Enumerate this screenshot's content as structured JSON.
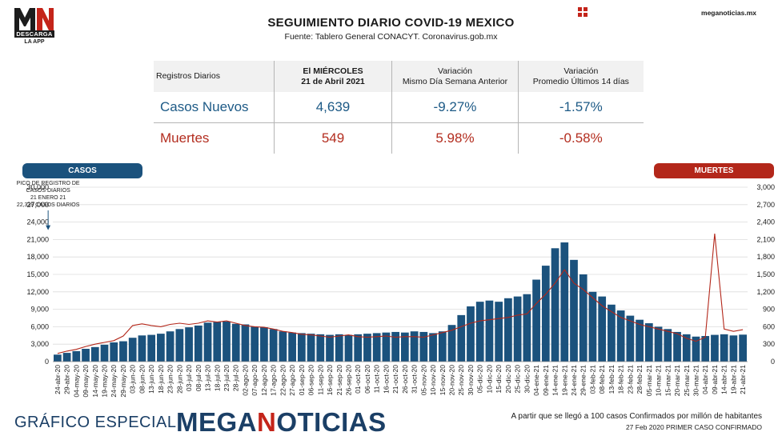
{
  "header": {
    "logo_letters": "MN",
    "logo_bar": "DESCARGA",
    "logo_sub": "LA APP",
    "title": "SEGUIMIENTO DIARIO COVID-19 MEXICO",
    "subtitle": "Fuente: Tablero General CONACYT. Coronavirus.gob.mx",
    "site": "meganoticias.mx"
  },
  "table": {
    "headers": {
      "label": "Registros Diarios",
      "date_line1": "El MIÉRCOLES",
      "date_line2": "21 de Abril 2021",
      "var1_line1": "Variación",
      "var1_line2": "Mismo Día Semana Anterior",
      "var2_line1": "Variación",
      "var2_line2": "Promedio Últimos 14 días"
    },
    "rows": [
      {
        "label": "Casos Nuevos",
        "value": "4,639",
        "var_week": "-9.27%",
        "var_14d": "-1.57%"
      },
      {
        "label": "Muertes",
        "value": "549",
        "var_week": "5.98%",
        "var_14d": "-0.58%"
      }
    ]
  },
  "legend": {
    "casos": "CASOS",
    "muertes": "MUERTES"
  },
  "annotation": [
    "PICO DE REGISTRO DE",
    "CASOS DIARIOS",
    "21 ENERO 21",
    "22,339 CASOS DIARIOS"
  ],
  "footer": {
    "left": "GRÁFICO ESPECIAL",
    "brand_a": "MEGA",
    "brand_b": "N",
    "brand_c": "OTICIAS",
    "note1": "A partir que se llegó a 100 casos Confirmados por millón de habitantes",
    "note2": "27 Feb 2020 PRIMER CASO CONFIRMADO"
  },
  "colors": {
    "casos": "#1b527d",
    "muertes": "#b3271a",
    "brand": "#1b3f66",
    "accent": "#c4241a"
  },
  "chart_data": {
    "type": "bar",
    "x_labels": [
      "24-abr-20",
      "29-abr-20",
      "04-may-20",
      "09-may-20",
      "14-may-20",
      "19-may-20",
      "24-may-20",
      "29-may-20",
      "03-jun-20",
      "08-jun-20",
      "13-jun-20",
      "18-jun-20",
      "23-jun-20",
      "28-jun-20",
      "03-jul-20",
      "08-jul-20",
      "13-jul-20",
      "18-jul-20",
      "23-jul-20",
      "28-jul-20",
      "02-ago-20",
      "07-ago-20",
      "12-ago-20",
      "17-ago-20",
      "22-ago-20",
      "27-ago-20",
      "01-sep-20",
      "06-sep-20",
      "11-sep-20",
      "16-sep-20",
      "21-sep-20",
      "26-sep-20",
      "01-oct-20",
      "06-oct-20",
      "11-oct-20",
      "16-oct-20",
      "21-oct-20",
      "26-oct-20",
      "31-oct-20",
      "05-nov-20",
      "10-nov-20",
      "15-nov-20",
      "20-nov-20",
      "25-nov-20",
      "30-nov-20",
      "05-dic-20",
      "10-dic-20",
      "15-dic-20",
      "20-dic-20",
      "25-dic-20",
      "30-dic-20",
      "04-ene-21",
      "09-ene-21",
      "14-ene-21",
      "19-ene-21",
      "24-ene-21",
      "29-ene-21",
      "03-feb-21",
      "08-feb-21",
      "13-feb-21",
      "18-feb-21",
      "23-feb-21",
      "28-feb-21",
      "05-mar-21",
      "10-mar-21",
      "15-mar-21",
      "20-mar-21",
      "25-mar-21",
      "30-mar-21",
      "04-abr-21",
      "09-abr-21",
      "14-abr-21",
      "19-abr-21",
      "21-abr-21"
    ],
    "series": [
      {
        "name": "CASOS",
        "axis": "left",
        "type": "bar",
        "values": [
          1200,
          1500,
          1800,
          2200,
          2500,
          2900,
          3300,
          3500,
          4100,
          4500,
          4600,
          4800,
          5200,
          5600,
          5900,
          6200,
          6700,
          6800,
          6900,
          6500,
          6400,
          6000,
          5900,
          5600,
          5200,
          5000,
          4900,
          4800,
          4700,
          4600,
          4700,
          4600,
          4700,
          4800,
          4900,
          5000,
          5100,
          5000,
          5200,
          5100,
          4900,
          5200,
          6300,
          8000,
          9500,
          10300,
          10500,
          10300,
          10900,
          11200,
          11600,
          14100,
          16500,
          19500,
          20500,
          17500,
          15000,
          12000,
          11200,
          9800,
          8800,
          7900,
          7200,
          6600,
          6000,
          5600,
          5100,
          4700,
          4300,
          4400,
          4600,
          4700,
          4500,
          4639
        ]
      },
      {
        "name": "MUERTES",
        "axis": "right",
        "type": "line",
        "values": [
          140,
          180,
          210,
          260,
          300,
          330,
          360,
          440,
          620,
          650,
          620,
          600,
          640,
          660,
          640,
          660,
          700,
          680,
          700,
          660,
          620,
          600,
          590,
          560,
          520,
          500,
          470,
          460,
          440,
          420,
          440,
          460,
          430,
          420,
          430,
          440,
          420,
          430,
          430,
          420,
          460,
          500,
          540,
          600,
          660,
          700,
          720,
          740,
          760,
          800,
          820,
          1000,
          1160,
          1350,
          1580,
          1350,
          1240,
          1100,
          960,
          860,
          760,
          700,
          640,
          600,
          560,
          520,
          480,
          400,
          350,
          420,
          2200,
          560,
          520,
          549
        ]
      }
    ],
    "annotation": {
      "x": "21-ene-21",
      "y": 22339,
      "text": "22,339 CASOS DIARIOS"
    },
    "y_left": {
      "min": 0,
      "max": 30000,
      "ticks": [
        "0",
        "3,000",
        "6,000",
        "9,000",
        "12,000",
        "15,000",
        "18,000",
        "21,000",
        "24,000",
        "27,000",
        "30,000"
      ]
    },
    "y_right": {
      "min": 0,
      "max": 3000,
      "ticks": [
        "0",
        "300",
        "600",
        "900",
        "1,200",
        "1,500",
        "1,800",
        "2,100",
        "2,400",
        "2,700",
        "3,000"
      ]
    },
    "grid": true
  }
}
